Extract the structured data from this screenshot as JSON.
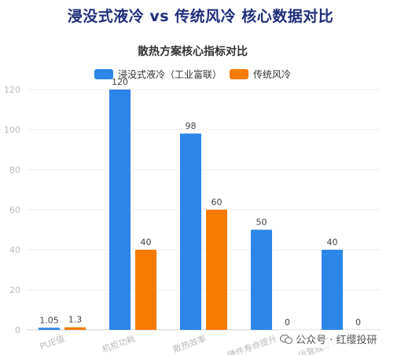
{
  "page_title": "浸没式液冷 vs 传统风冷 核心数据对比",
  "watermark": "公众号 · 红缨投研",
  "chart_data": {
    "type": "bar",
    "title": "散热方案核心指标对比",
    "categories": [
      "PUE值",
      "机柜功耗",
      "散热效率",
      "硬件寿命提升",
      "运营成本降低"
    ],
    "series": [
      {
        "name": "浸没式液冷（工业富联）",
        "color": "#2b86e8",
        "values": [
          1.05,
          120,
          98,
          50,
          40
        ]
      },
      {
        "name": "传统风冷",
        "color": "#f57c00",
        "values": [
          1.3,
          40,
          60,
          0,
          0
        ]
      }
    ],
    "ylim": [
      0,
      120
    ],
    "yticks": [
      0,
      20,
      40,
      60,
      80,
      100,
      120
    ],
    "legend_position": "top-center",
    "grid": true,
    "xlabel": "",
    "ylabel": ""
  }
}
